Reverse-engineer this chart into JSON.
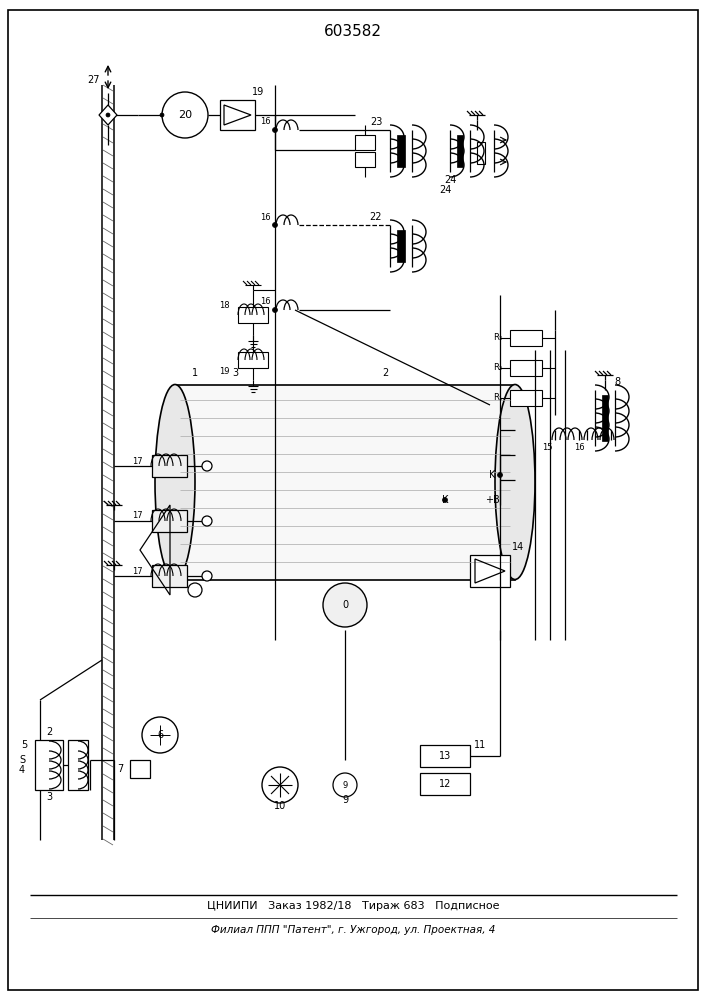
{
  "title": "603582",
  "footer_line1": "ЦНИИПИ   Заказ 1982/18   Тираж 683   Подписное",
  "footer_line2": "Филиал ППП \"Патент\", г. Ужгород, ул. Проектная, 4",
  "bg_color": "#ffffff",
  "fg_color": "#000000"
}
